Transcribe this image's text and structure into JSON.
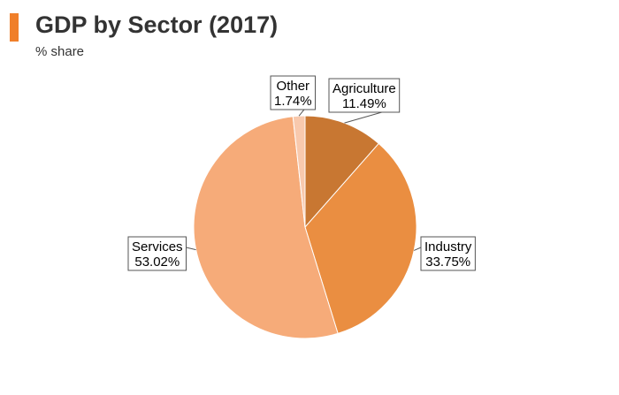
{
  "header": {
    "title": "GDP by Sector (2017)",
    "subtitle": "% share",
    "accent_color": "#f07f2a"
  },
  "chart_data": {
    "type": "pie",
    "title": "GDP by Sector (2017)",
    "subtitle": "% share",
    "slices": [
      {
        "name": "Agriculture",
        "value": 11.49,
        "label": "11.49%",
        "color": "#c87732"
      },
      {
        "name": "Industry",
        "value": 33.75,
        "label": "33.75%",
        "color": "#ea8e41"
      },
      {
        "name": "Services",
        "value": 53.02,
        "label": "53.02%",
        "color": "#f6ab79"
      },
      {
        "name": "Other",
        "value": 1.74,
        "label": "1.74%",
        "color": "#f8c9ad"
      }
    ],
    "legend": "none"
  }
}
